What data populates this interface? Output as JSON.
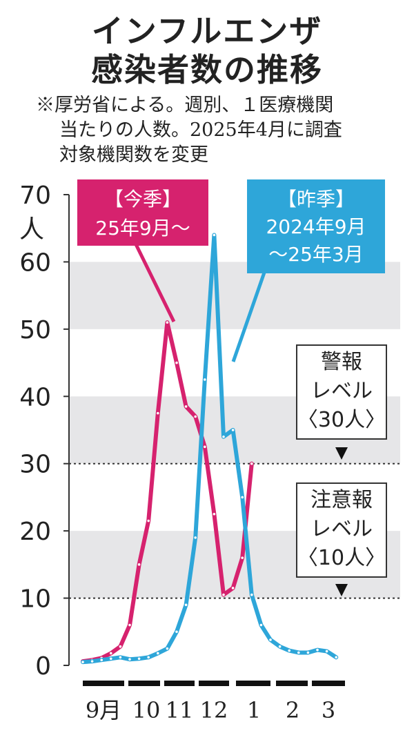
{
  "title_line1": "インフルエンザ",
  "title_line2": "感染者数の推移",
  "note_line1": "※厚労省による。週別、１医療機関",
  "note_line2": "当たりの人数。2025年4月に調査",
  "note_line3": "対象機関数を変更",
  "chart_data": {
    "type": "line",
    "unit": "人",
    "ylim": [
      0,
      70
    ],
    "yticks": [
      "0",
      "10",
      "20",
      "30",
      "40",
      "50",
      "60",
      "70"
    ],
    "months": [
      "9月",
      "10",
      "11",
      "12",
      "1",
      "2",
      "3"
    ],
    "series": [
      {
        "name": "今季",
        "label_line1": "【今季】",
        "label_line2": "25年9月～",
        "color": "#d6226e",
        "values": [
          0.6,
          0.8,
          1.1,
          1.8,
          2.8,
          6.0,
          15.0,
          21.5,
          37.5,
          51.0,
          45.0,
          38.5,
          37.0,
          32.5,
          22.5,
          10.5,
          11.5,
          16.0,
          30.0
        ]
      },
      {
        "name": "昨季",
        "label_line1": "【昨季】",
        "label_line2": "2024年9月",
        "label_line3": "～25年3月",
        "color": "#2ea6d9",
        "values": [
          0.5,
          0.6,
          0.8,
          1.0,
          1.2,
          0.9,
          1.0,
          1.2,
          1.8,
          2.5,
          5.0,
          9.0,
          19.0,
          42.5,
          64.0,
          34.0,
          35.0,
          25.0,
          10.5,
          6.0,
          3.8,
          2.8,
          2.2,
          1.9,
          1.9,
          2.3,
          2.1,
          1.2
        ]
      }
    ],
    "thresholds": [
      {
        "value": 30,
        "label_line1": "警報",
        "label_line2": "レベル",
        "label_line3": "〈30人〉"
      },
      {
        "value": 10,
        "label_line1": "注意報",
        "label_line2": "レベル",
        "label_line3": "〈10人〉"
      }
    ]
  }
}
